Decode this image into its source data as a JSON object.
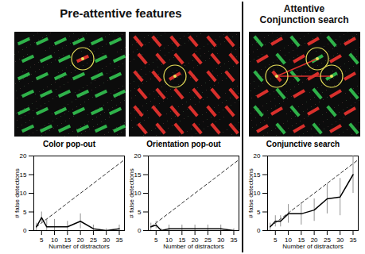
{
  "headers": {
    "left": [
      "Pre-attentive features"
    ],
    "right": [
      "Attentive",
      "Conjunction search"
    ]
  },
  "chart_data": [
    {
      "type": "line",
      "title": "Color pop-out",
      "x_label": "Number of distractors",
      "y_label": "# false detections",
      "x": [
        3,
        5,
        7,
        10,
        15,
        20,
        25,
        30,
        35
      ],
      "values": [
        1,
        3.5,
        1,
        1,
        1,
        2.5,
        0.5,
        0,
        0.5
      ],
      "errors": [
        1,
        1.5,
        2,
        2,
        1.5,
        2,
        1,
        0.5,
        1
      ],
      "color": "#000000",
      "reference": {
        "x": [
          3,
          37
        ],
        "values": [
          1,
          19
        ],
        "line_style": "dashed"
      },
      "xlim": [
        2,
        37
      ],
      "xticks": [
        5,
        10,
        15,
        20,
        25,
        30,
        35
      ],
      "ylim": [
        0,
        20
      ],
      "yticks": [
        0,
        5,
        10,
        15,
        20
      ]
    },
    {
      "type": "line",
      "title": "Orientation pop-out",
      "x_label": "Number of distractors",
      "y_label": "# false detections",
      "x": [
        3,
        5,
        7,
        10,
        15,
        20,
        25,
        30,
        35
      ],
      "values": [
        1,
        1.5,
        0,
        0.5,
        0.5,
        0.5,
        0.5,
        0.5,
        0
      ],
      "errors": [
        1,
        1,
        0.5,
        1,
        1,
        1,
        1,
        1,
        0.5
      ],
      "color": "#000000",
      "reference": {
        "x": [
          3,
          37
        ],
        "values": [
          1,
          19
        ],
        "line_style": "dashed"
      },
      "xlim": [
        2,
        37
      ],
      "xticks": [
        5,
        10,
        15,
        20,
        25,
        30,
        35
      ],
      "ylim": [
        0,
        20
      ],
      "yticks": [
        0,
        5,
        10,
        15,
        20
      ]
    },
    {
      "type": "line",
      "title": "Conjunctive search",
      "x_label": "Number of distractors",
      "y_label": "# false detections",
      "x": [
        3,
        5,
        7,
        10,
        15,
        20,
        25,
        30,
        35
      ],
      "values": [
        1,
        2.5,
        2.5,
        4.5,
        4.5,
        5.5,
        8.5,
        9,
        15
      ],
      "errors": [
        1,
        1.5,
        1.5,
        2.5,
        3,
        3,
        4,
        5,
        5
      ],
      "color": "#000000",
      "reference": {
        "x": [
          3,
          37
        ],
        "values": [
          1,
          19
        ],
        "line_style": "dashed"
      },
      "xlim": [
        2,
        37
      ],
      "xticks": [
        5,
        10,
        15,
        20,
        25,
        30,
        35
      ],
      "ylim": [
        0,
        20
      ],
      "yticks": [
        0,
        5,
        10,
        15,
        20
      ]
    }
  ]
}
